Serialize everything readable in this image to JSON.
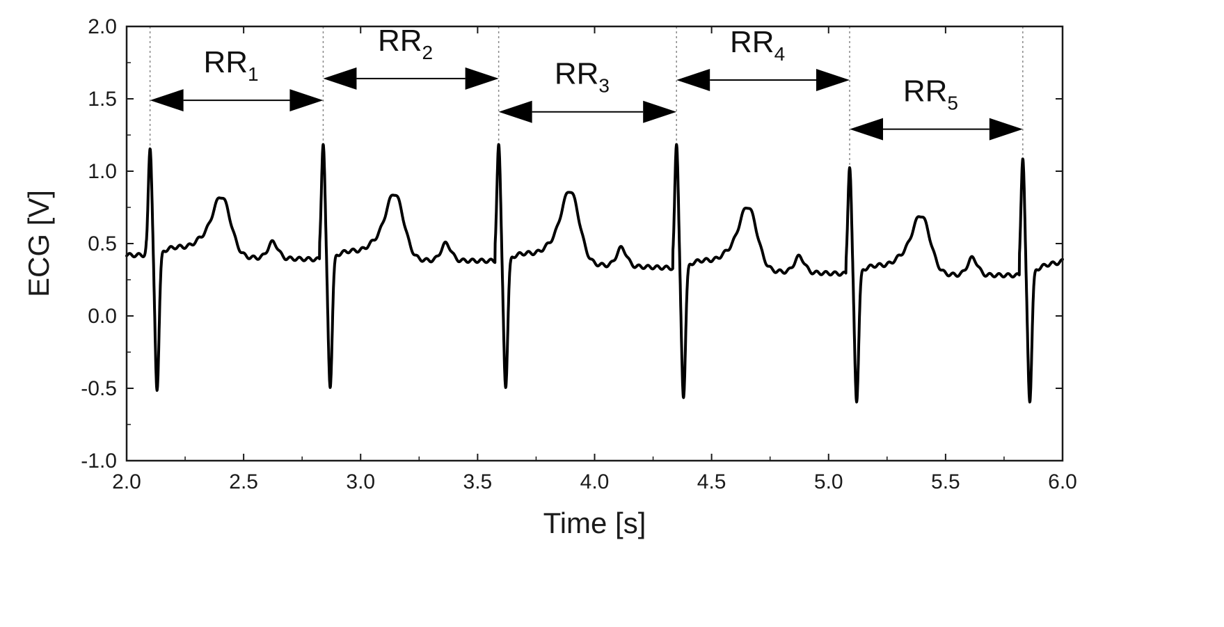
{
  "chart_data": {
    "type": "line",
    "title": "",
    "xlabel": "Time [s]",
    "ylabel": "ECG [V]",
    "xlim": [
      2.0,
      6.0
    ],
    "ylim": [
      -1.0,
      2.0
    ],
    "x_ticks": [
      "2.0",
      "2.5",
      "3.0",
      "3.5",
      "4.0",
      "4.5",
      "5.0",
      "5.5",
      "6.0"
    ],
    "y_ticks": [
      "-1.0",
      "-0.5",
      "0.0",
      "0.5",
      "1.0",
      "1.5",
      "2.0"
    ],
    "grid": false,
    "legend": "none",
    "line_color": "#000000",
    "baseline_start": 0.41,
    "baseline_end": 0.39,
    "beats": [
      {
        "r_time": 2.1,
        "r_peak": 1.15,
        "s_min": -0.52,
        "baseline": 0.42,
        "t_peak": 0.88,
        "u_peak": 0.51,
        "post_level": 0.39
      },
      {
        "r_time": 2.84,
        "r_peak": 1.18,
        "s_min": -0.5,
        "baseline": 0.39,
        "t_peak": 0.9,
        "u_peak": 0.5,
        "post_level": 0.38
      },
      {
        "r_time": 3.59,
        "r_peak": 1.18,
        "s_min": -0.5,
        "baseline": 0.38,
        "t_peak": 0.92,
        "u_peak": 0.47,
        "post_level": 0.33
      },
      {
        "r_time": 4.35,
        "r_peak": 1.18,
        "s_min": -0.57,
        "baseline": 0.33,
        "t_peak": 0.81,
        "u_peak": 0.41,
        "post_level": 0.29
      },
      {
        "r_time": 5.09,
        "r_peak": 1.02,
        "s_min": -0.6,
        "baseline": 0.29,
        "t_peak": 0.75,
        "u_peak": 0.4,
        "post_level": 0.28
      },
      {
        "r_time": 5.83,
        "r_peak": 1.08,
        "s_min": -0.6,
        "baseline": 0.28,
        "t_peak": 0.72,
        "u_peak": 0.4,
        "post_level": 0.39
      }
    ],
    "rr_intervals": [
      {
        "name": "RR",
        "sub": "1",
        "start": 2.1,
        "end": 2.84,
        "y": 1.49
      },
      {
        "name": "RR",
        "sub": "2",
        "start": 2.84,
        "end": 3.59,
        "y": 1.64
      },
      {
        "name": "RR",
        "sub": "3",
        "start": 3.59,
        "end": 4.35,
        "y": 1.41
      },
      {
        "name": "RR",
        "sub": "4",
        "start": 4.35,
        "end": 5.09,
        "y": 1.63
      },
      {
        "name": "RR",
        "sub": "5",
        "start": 5.09,
        "end": 5.83,
        "y": 1.29
      }
    ]
  }
}
